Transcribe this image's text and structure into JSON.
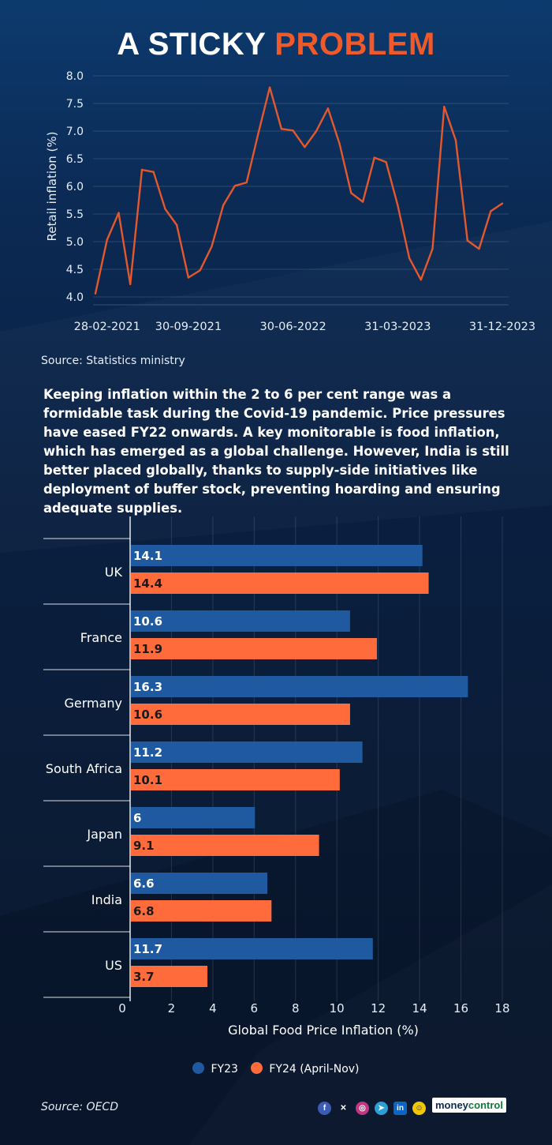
{
  "title": {
    "part1": "A STICKY",
    "part2": "PROBLEM"
  },
  "colors": {
    "accent": "#f05a2a",
    "fy23": "#1f5aa0",
    "fy24": "#ff6b3a",
    "line": "#e5582c"
  },
  "line_source": "Source: Statistics ministry",
  "paragraph": "Keeping inflation within the 2 to 6 per cent range was a formidable task during the Covid-19 pandemic. Price pressures have eased FY22 onwards.   A key monitorable is food inflation, which has emerged as a global challenge. However, India is still better placed globally, thanks to supply-side initiatives like deployment of buffer stock, preventing hoarding and ensuring adequate supplies.",
  "legend": {
    "fy23": "FY23",
    "fy24": "FY24 (April-Nov)"
  },
  "bar_source": "Source: OECD",
  "social_icons": [
    "facebook-icon",
    "x-icon",
    "instagram-icon",
    "telegram-icon",
    "linkedin-icon",
    "snapchat-icon"
  ],
  "brand": {
    "part1": "money",
    "part2": "control"
  },
  "chart_data": [
    {
      "type": "line",
      "title": "",
      "ylabel": "Retail inflation (%)",
      "xlabel": "",
      "ylim": [
        4.0,
        8.0
      ],
      "yticks": [
        "8.0",
        "7.5",
        "7.0",
        "6.5",
        "6.0",
        "5.5",
        "5.0",
        "4.5",
        "4.0"
      ],
      "xtick_labels": [
        "28-02-2021",
        "30-09-2021",
        "30-06-2022",
        "31-03-2023",
        "31-12-2023"
      ],
      "xtick_indices": [
        1,
        8,
        17,
        26,
        35
      ],
      "series": [
        {
          "name": "Retail inflation",
          "values": [
            4.06,
            5.03,
            5.52,
            4.23,
            6.3,
            6.26,
            5.59,
            5.3,
            4.35,
            4.48,
            4.91,
            5.66,
            6.01,
            6.07,
            6.95,
            7.79,
            7.04,
            7.01,
            6.71,
            7.0,
            7.41,
            6.77,
            5.88,
            5.72,
            6.52,
            6.44,
            5.66,
            4.7,
            4.31,
            4.87,
            7.44,
            6.83,
            5.02,
            4.87,
            5.55,
            5.69
          ]
        }
      ]
    },
    {
      "type": "bar",
      "orientation": "horizontal",
      "xlabel": "Global Food Price Inflation (%)",
      "xlim": [
        0,
        18
      ],
      "xticks": [
        0,
        2,
        4,
        6,
        8,
        10,
        12,
        14,
        16,
        18
      ],
      "categories": [
        "UK",
        "France",
        "Germany",
        "South Africa",
        "Japan",
        "India",
        "US"
      ],
      "series": [
        {
          "name": "FY23",
          "values": [
            14.1,
            10.6,
            16.3,
            11.2,
            6,
            6.6,
            11.7
          ],
          "labels": [
            "14.1",
            "10.6",
            "16.3",
            "11.2",
            "6",
            "6.6",
            "11.7"
          ]
        },
        {
          "name": "FY24 (April-Nov)",
          "values": [
            14.4,
            11.9,
            10.6,
            10.1,
            9.1,
            6.8,
            3.7
          ],
          "labels": [
            "14.4",
            "11.9",
            "10.6",
            "10.1",
            "9.1",
            "6.8",
            "3.7"
          ]
        }
      ]
    }
  ]
}
